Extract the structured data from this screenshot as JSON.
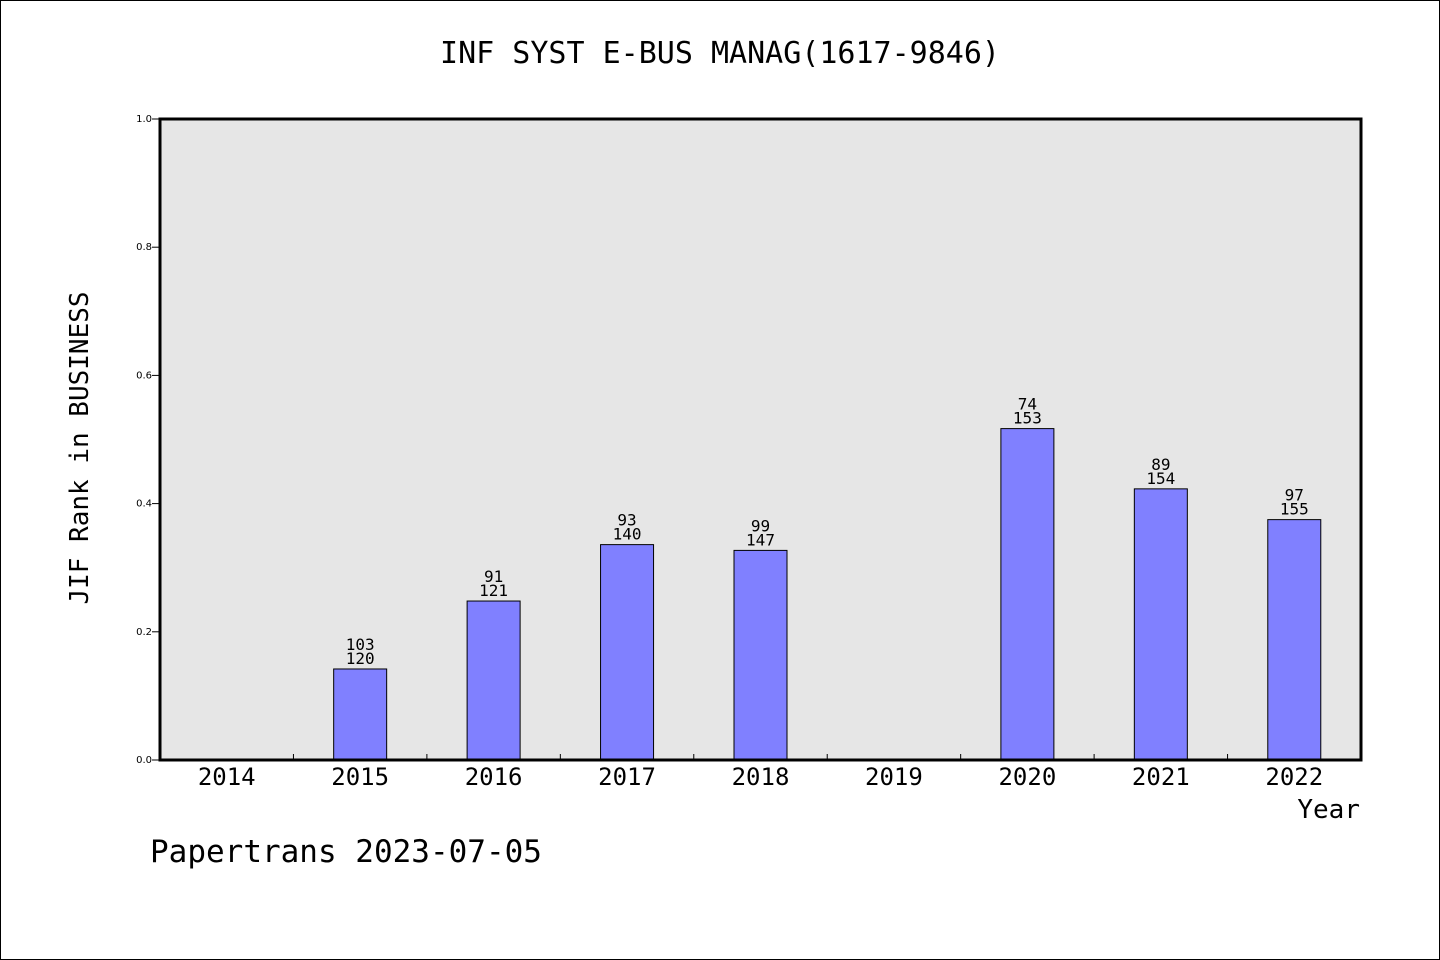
{
  "chart_data": {
    "type": "bar",
    "title": "INF SYST E-BUS MANAG(1617-9846)",
    "xlabel": "Year",
    "ylabel": "JIF Rank in BUSINESS",
    "ylim": [
      0,
      1.0
    ],
    "yticks": [
      "0.0",
      "0.2",
      "0.4",
      "0.6",
      "0.8",
      "1.0"
    ],
    "grid": false,
    "plot_background": "#e6e6e6",
    "bar_color": "#8080ff",
    "categories": [
      "2014",
      "2015",
      "2016",
      "2017",
      "2018",
      "2019",
      "2020",
      "2021",
      "2022"
    ],
    "values": [
      null,
      0.142,
      0.248,
      0.336,
      0.327,
      null,
      0.517,
      0.423,
      0.375
    ],
    "labels_top": [
      "",
      "103",
      "91",
      "93",
      "99",
      "",
      "74",
      "89",
      "97"
    ],
    "labels_bottom": [
      "",
      "120",
      "121",
      "140",
      "147",
      "",
      "153",
      "154",
      "155"
    ]
  },
  "footer": {
    "credit": "Papertrans 2023-07-05"
  }
}
